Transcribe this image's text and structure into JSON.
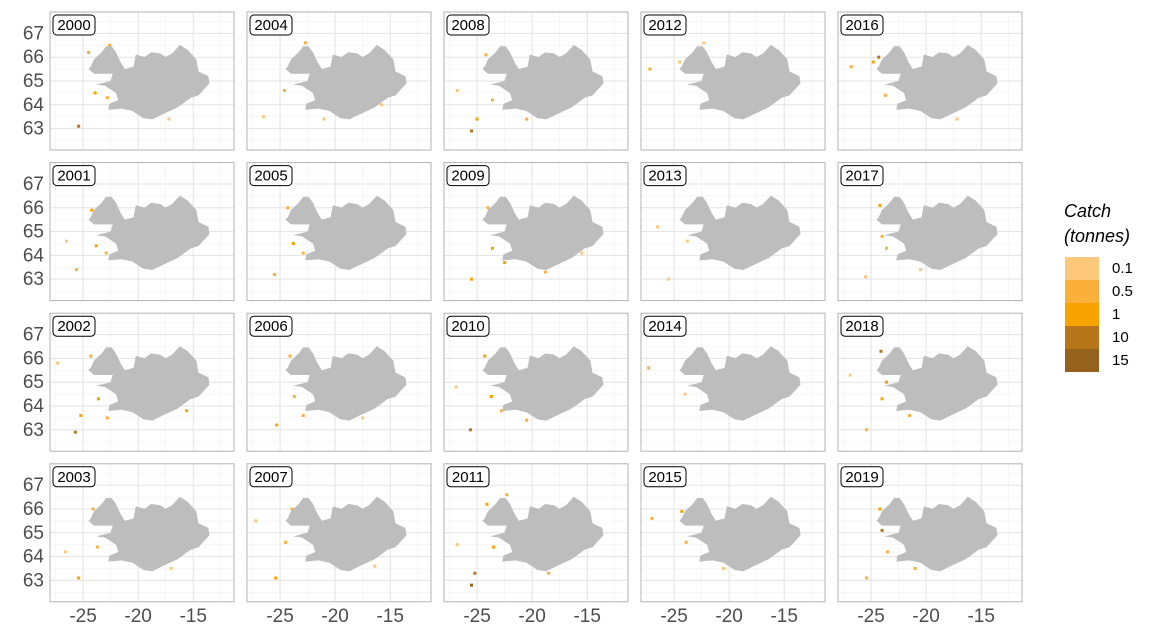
{
  "chart_data": {
    "type": "faceted-map",
    "xlim": [
      -28,
      -11.3
    ],
    "ylim": [
      62.1,
      67.9
    ],
    "xticks": [
      -25,
      -20,
      -15
    ],
    "yticks": [
      63,
      64,
      65,
      66,
      67
    ],
    "grid": true,
    "legend": {
      "title": [
        "Catch",
        "(tonnes)"
      ],
      "position": "right",
      "labels": [
        0.1,
        0.5,
        1,
        10,
        15
      ],
      "colors": [
        "#fdc87a",
        "#fbb03b",
        "#f8a300",
        "#b8761a",
        "#94621c"
      ]
    },
    "panels": [
      {
        "year": "2000",
        "lon": [
          -24.5,
          -23.9,
          -23.4,
          -25.4,
          -22.8,
          -17.2,
          -14.4,
          -22.6
        ],
        "lat": [
          66.2,
          64.5,
          65.9,
          63.1,
          64.3,
          63.4,
          64.8,
          66.5
        ],
        "catch": [
          0.5,
          1,
          0.5,
          10,
          0.5,
          0.1,
          0.1,
          0.5
        ]
      },
      {
        "year": "2001",
        "lon": [
          -24.2,
          -23.8,
          -25.6,
          -22.9,
          -26.5,
          -14.2
        ],
        "lat": [
          65.9,
          64.4,
          63.4,
          64.1,
          64.6,
          65.1
        ],
        "catch": [
          1,
          1,
          0.5,
          0.5,
          0.1,
          0.5
        ]
      },
      {
        "year": "2002",
        "lon": [
          -24.3,
          -25.7,
          -25.2,
          -23.6,
          -15.6,
          -22.8,
          -27.3
        ],
        "lat": [
          66.1,
          62.9,
          63.6,
          64.3,
          63.8,
          63.5,
          65.8
        ],
        "catch": [
          0.5,
          10,
          1,
          1,
          1,
          0.5,
          0.1
        ]
      },
      {
        "year": "2003",
        "lon": [
          -24.1,
          -25.4,
          -23.7,
          -14.2,
          -17.0,
          -26.6
        ],
        "lat": [
          66.0,
          63.1,
          64.4,
          64.8,
          63.5,
          64.2
        ],
        "catch": [
          0.5,
          1,
          0.5,
          1,
          0.1,
          0.1
        ]
      },
      {
        "year": "2004",
        "lon": [
          -23.8,
          -22.7,
          -24.6,
          -21.0,
          -15.8,
          -26.5
        ],
        "lat": [
          65.9,
          66.6,
          64.6,
          63.4,
          64.0,
          63.5
        ],
        "catch": [
          1,
          0.5,
          0.5,
          0.1,
          0.1,
          0.1
        ]
      },
      {
        "year": "2005",
        "lon": [
          -24.3,
          -23.8,
          -22.9,
          -25.5,
          -15.2
        ],
        "lat": [
          66.0,
          64.5,
          64.1,
          63.2,
          64.4
        ],
        "catch": [
          0.5,
          1,
          0.5,
          0.5,
          0.1
        ]
      },
      {
        "year": "2006",
        "lon": [
          -24.1,
          -23.7,
          -25.3,
          -22.9,
          -17.5
        ],
        "lat": [
          66.1,
          64.4,
          63.2,
          63.6,
          63.5
        ],
        "catch": [
          0.5,
          0.5,
          1,
          0.5,
          0.1
        ]
      },
      {
        "year": "2007",
        "lon": [
          -23.9,
          -24.5,
          -25.4,
          -22.5,
          -16.4,
          -27.2
        ],
        "lat": [
          66.0,
          64.6,
          63.1,
          63.9,
          63.6,
          65.5
        ],
        "catch": [
          0.5,
          0.5,
          1,
          0.5,
          0.1,
          0.1
        ]
      },
      {
        "year": "2008",
        "lon": [
          -24.2,
          -25.5,
          -25.0,
          -23.6,
          -20.5,
          -26.8
        ],
        "lat": [
          66.1,
          62.9,
          63.4,
          64.2,
          63.4,
          64.6
        ],
        "catch": [
          0.5,
          10,
          1,
          0.5,
          0.5,
          0.1
        ]
      },
      {
        "year": "2009",
        "lon": [
          -24.0,
          -25.5,
          -23.6,
          -22.5,
          -18.8,
          -15.5
        ],
        "lat": [
          66.0,
          63.0,
          64.3,
          63.7,
          63.3,
          64.1
        ],
        "catch": [
          0.5,
          1,
          1,
          1,
          0.5,
          0.1
        ]
      },
      {
        "year": "2010",
        "lon": [
          -24.3,
          -25.6,
          -23.7,
          -22.8,
          -20.5,
          -26.9
        ],
        "lat": [
          66.1,
          63.0,
          64.4,
          63.8,
          63.4,
          64.8
        ],
        "catch": [
          1,
          10,
          1,
          0.5,
          0.5,
          0.1
        ]
      },
      {
        "year": "2011",
        "lon": [
          -24.1,
          -25.5,
          -25.2,
          -23.5,
          -22.3,
          -18.5,
          -26.8
        ],
        "lat": [
          66.2,
          62.8,
          63.3,
          64.4,
          66.6,
          63.3,
          64.5
        ],
        "catch": [
          1,
          15,
          10,
          1,
          0.5,
          0.5,
          0.1
        ]
      },
      {
        "year": "2012",
        "lon": [
          -27.2,
          -24.5,
          -22.3
        ],
        "lat": [
          65.5,
          65.8,
          66.6
        ],
        "catch": [
          0.5,
          0.1,
          0.1
        ]
      },
      {
        "year": "2013",
        "lon": [
          -23.8,
          -25.5,
          -26.5
        ],
        "lat": [
          64.6,
          63.0,
          65.2
        ],
        "catch": [
          0.1,
          0.1,
          0.1
        ]
      },
      {
        "year": "2014",
        "lon": [
          -27.3,
          -24.0
        ],
        "lat": [
          65.6,
          64.5
        ],
        "catch": [
          0.5,
          0.1
        ]
      },
      {
        "year": "2015",
        "lon": [
          -24.3,
          -27.0,
          -23.9,
          -20.5
        ],
        "lat": [
          65.9,
          65.6,
          64.6,
          63.5
        ],
        "catch": [
          1,
          0.5,
          0.5,
          0.1
        ]
      },
      {
        "year": "2016",
        "lon": [
          -24.3,
          -24.8,
          -26.8,
          -23.7,
          -17.2
        ],
        "lat": [
          66.0,
          65.8,
          65.6,
          64.4,
          63.4
        ],
        "catch": [
          10,
          1,
          0.5,
          0.5,
          0.1
        ]
      },
      {
        "year": "2017",
        "lon": [
          -24.2,
          -24.0,
          -23.6,
          -25.5,
          -20.5
        ],
        "lat": [
          66.1,
          64.8,
          64.3,
          63.1,
          63.4
        ],
        "catch": [
          1,
          0.5,
          0.5,
          0.1,
          0.1
        ]
      },
      {
        "year": "2018",
        "lon": [
          -24.1,
          -23.6,
          -24.0,
          -25.4,
          -21.5,
          -26.9
        ],
        "lat": [
          66.3,
          65.0,
          64.3,
          63.0,
          63.6,
          65.3
        ],
        "catch": [
          10,
          1,
          1,
          0.5,
          0.5,
          0.1
        ]
      },
      {
        "year": "2019",
        "lon": [
          -24.2,
          -24.0,
          -23.5,
          -25.4,
          -21.0
        ],
        "lat": [
          66.0,
          65.1,
          64.2,
          63.1,
          63.5
        ],
        "catch": [
          1,
          10,
          0.5,
          0.5,
          0.5
        ]
      }
    ]
  }
}
